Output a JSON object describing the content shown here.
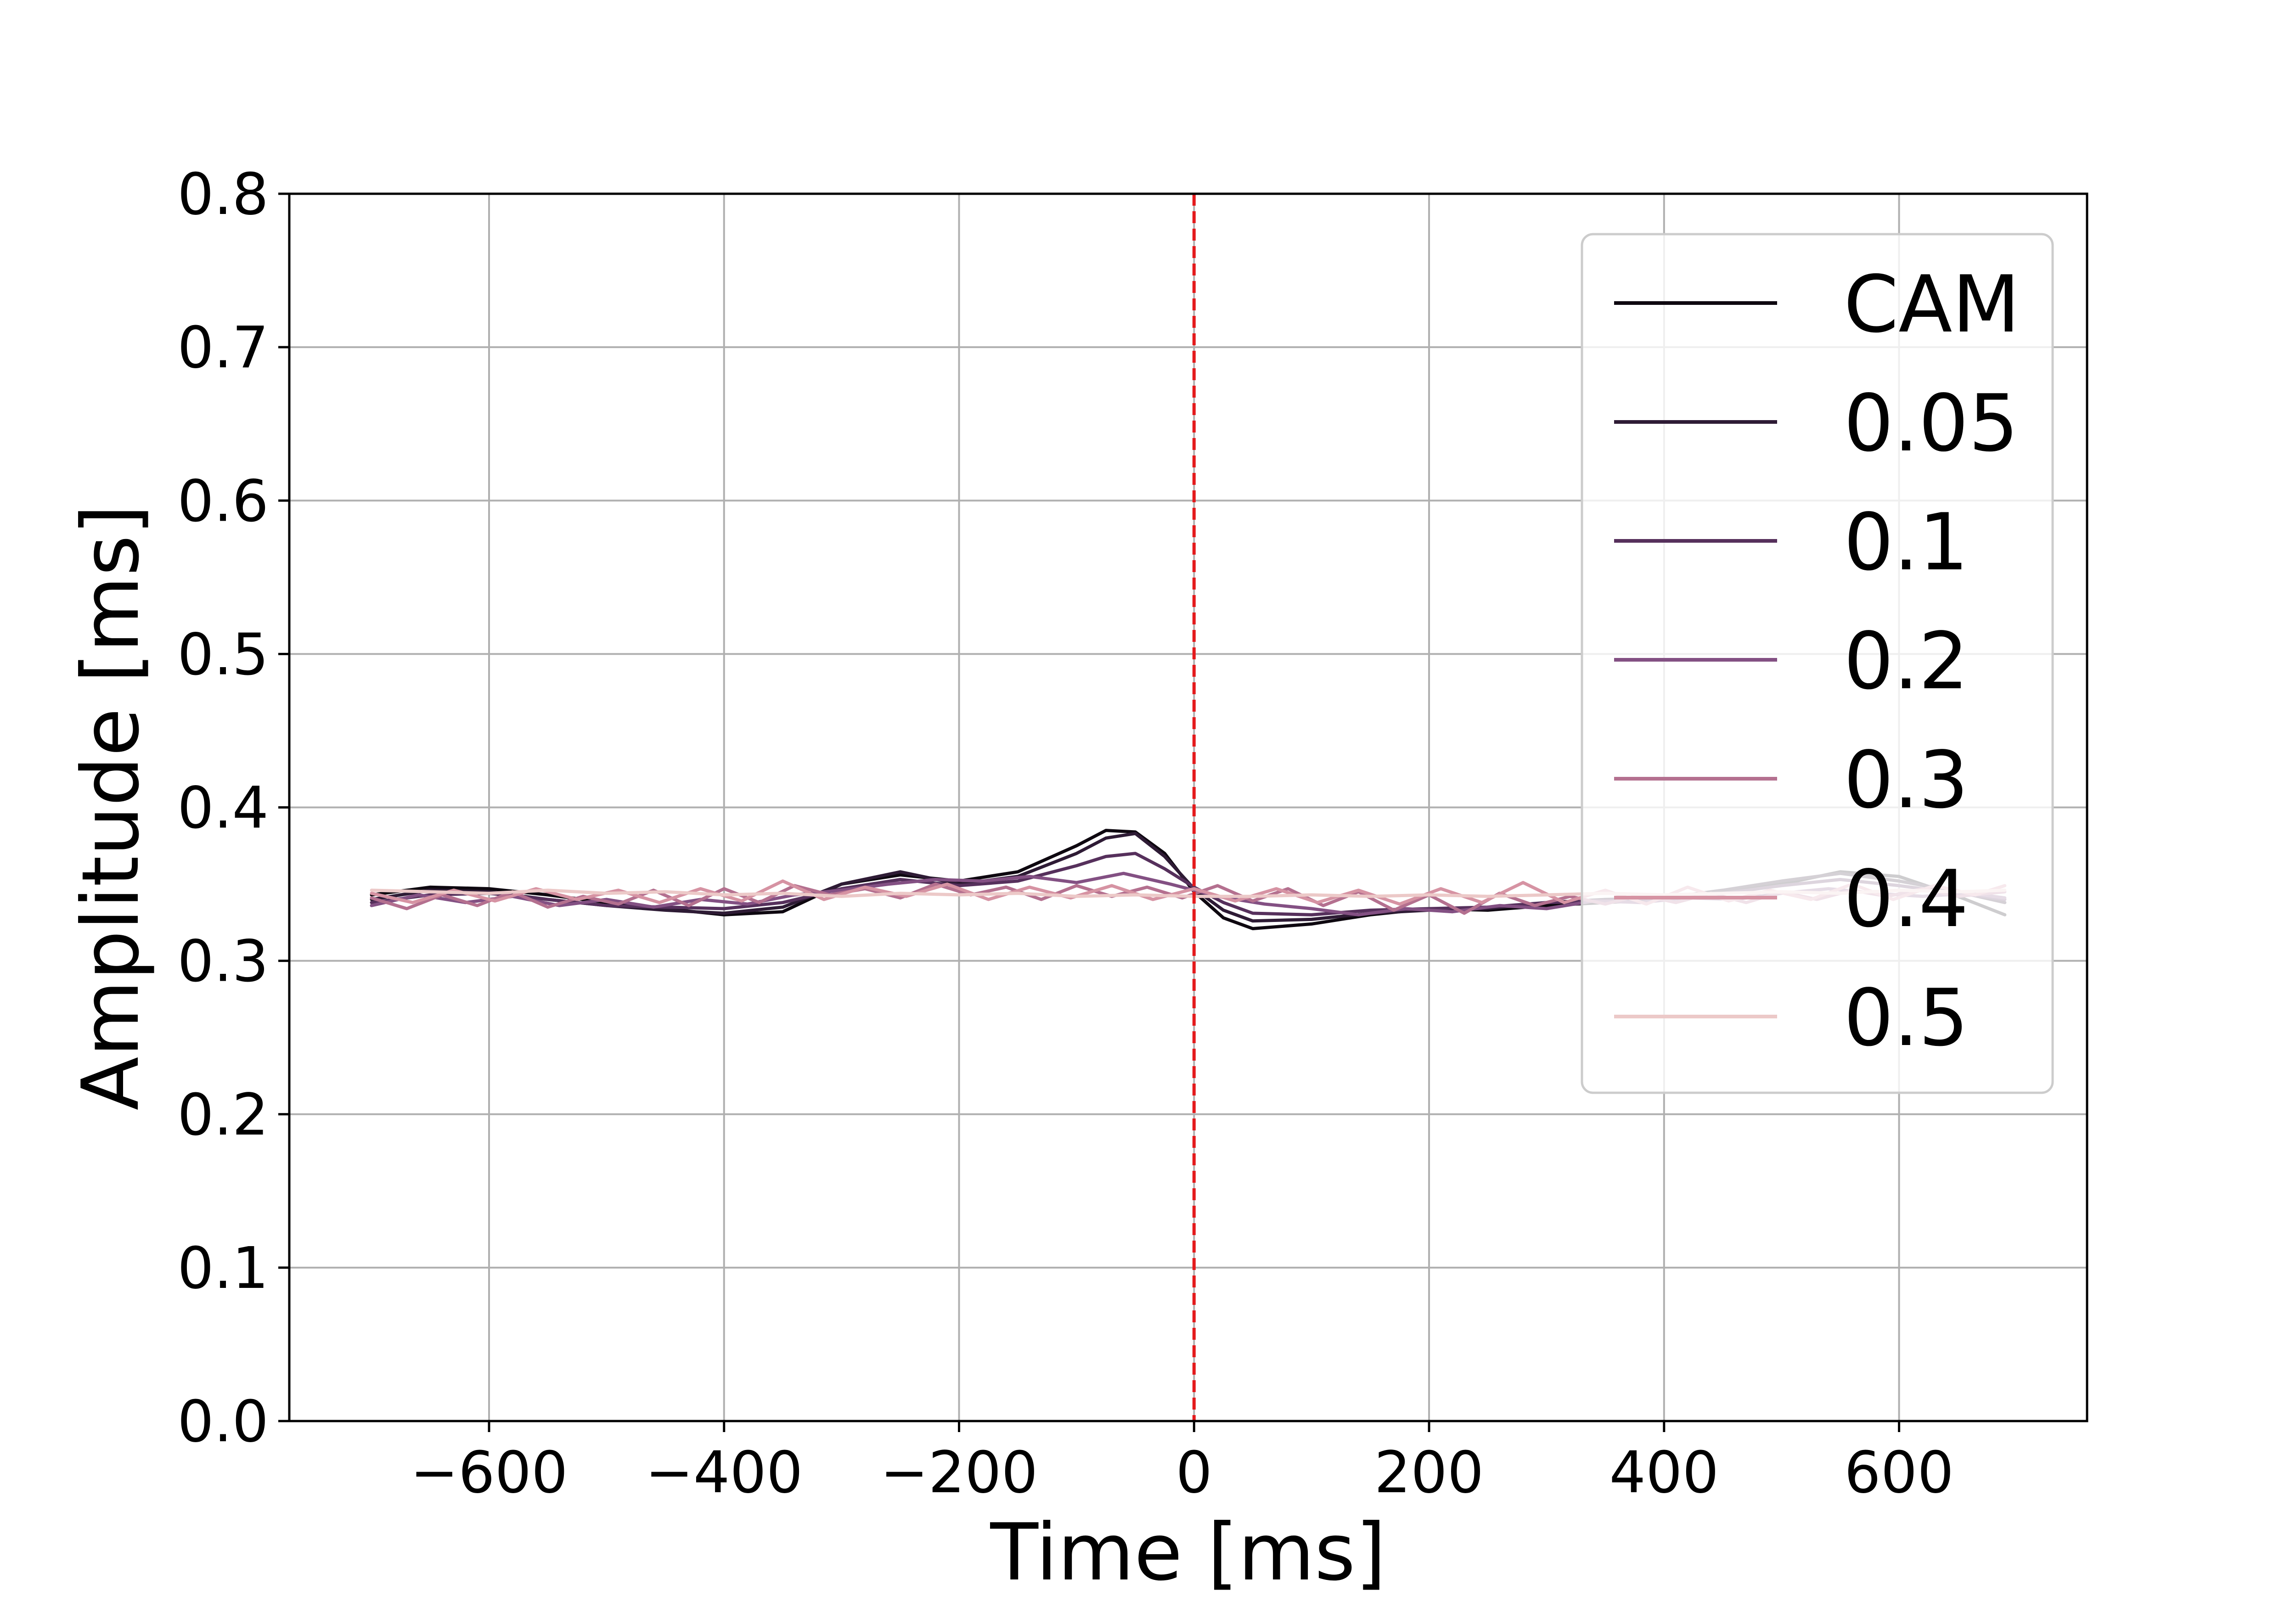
{
  "chart_data": {
    "type": "line",
    "xlabel": "Time [ms]",
    "ylabel": "Amplitude [ms]",
    "xlim": [
      -770,
      760
    ],
    "ylim": [
      0.0,
      0.8
    ],
    "xticks": [
      -600,
      -400,
      -200,
      0,
      200,
      400,
      600
    ],
    "xtick_labels": [
      "−600",
      "−400",
      "−200",
      "0",
      "200",
      "400",
      "600"
    ],
    "yticks": [
      0.0,
      0.1,
      0.2,
      0.3,
      0.4,
      0.5,
      0.6,
      0.7,
      0.8
    ],
    "ytick_labels": [
      "0.0",
      "0.1",
      "0.2",
      "0.3",
      "0.4",
      "0.5",
      "0.6",
      "0.7",
      "0.8"
    ],
    "grid": true,
    "legend_position": "top-right",
    "vline": {
      "x": 0,
      "color": "#e41a1c",
      "style": "dashed"
    },
    "series": [
      {
        "name": "CAM",
        "color": "#0e0810",
        "points": [
          [
            -700,
            0.343
          ],
          [
            -650,
            0.348
          ],
          [
            -600,
            0.347
          ],
          [
            -550,
            0.343
          ],
          [
            -500,
            0.338
          ],
          [
            -450,
            0.334
          ],
          [
            -400,
            0.33
          ],
          [
            -350,
            0.332
          ],
          [
            -300,
            0.35
          ],
          [
            -250,
            0.356
          ],
          [
            -200,
            0.352
          ],
          [
            -150,
            0.358
          ],
          [
            -100,
            0.375
          ],
          [
            -75,
            0.385
          ],
          [
            -50,
            0.384
          ],
          [
            -25,
            0.37
          ],
          [
            0,
            0.345
          ],
          [
            25,
            0.328
          ],
          [
            50,
            0.321
          ],
          [
            100,
            0.324
          ],
          [
            150,
            0.33
          ],
          [
            200,
            0.334
          ],
          [
            250,
            0.333
          ],
          [
            300,
            0.336
          ],
          [
            350,
            0.338
          ],
          [
            400,
            0.34
          ],
          [
            450,
            0.344
          ],
          [
            500,
            0.35
          ],
          [
            550,
            0.358
          ],
          [
            600,
            0.355
          ],
          [
            650,
            0.342
          ],
          [
            690,
            0.33
          ]
        ]
      },
      {
        "name": "0.05",
        "color": "#2e1b35",
        "points": [
          [
            -700,
            0.34
          ],
          [
            -650,
            0.346
          ],
          [
            -600,
            0.345
          ],
          [
            -550,
            0.34
          ],
          [
            -500,
            0.336
          ],
          [
            -450,
            0.333
          ],
          [
            -400,
            0.331
          ],
          [
            -350,
            0.335
          ],
          [
            -300,
            0.35
          ],
          [
            -250,
            0.358
          ],
          [
            -200,
            0.35
          ],
          [
            -150,
            0.355
          ],
          [
            -100,
            0.37
          ],
          [
            -75,
            0.38
          ],
          [
            -50,
            0.383
          ],
          [
            -25,
            0.368
          ],
          [
            0,
            0.347
          ],
          [
            25,
            0.333
          ],
          [
            50,
            0.326
          ],
          [
            100,
            0.327
          ],
          [
            150,
            0.331
          ],
          [
            200,
            0.333
          ],
          [
            250,
            0.334
          ],
          [
            300,
            0.338
          ],
          [
            350,
            0.34
          ],
          [
            400,
            0.341
          ],
          [
            450,
            0.346
          ],
          [
            500,
            0.352
          ],
          [
            550,
            0.357
          ],
          [
            600,
            0.352
          ],
          [
            650,
            0.345
          ],
          [
            690,
            0.338
          ]
        ]
      },
      {
        "name": "0.1",
        "color": "#56305c",
        "points": [
          [
            -700,
            0.338
          ],
          [
            -650,
            0.343
          ],
          [
            -600,
            0.344
          ],
          [
            -550,
            0.34
          ],
          [
            -500,
            0.336
          ],
          [
            -450,
            0.335
          ],
          [
            -400,
            0.334
          ],
          [
            -350,
            0.338
          ],
          [
            -300,
            0.347
          ],
          [
            -250,
            0.353
          ],
          [
            -200,
            0.349
          ],
          [
            -150,
            0.352
          ],
          [
            -100,
            0.362
          ],
          [
            -75,
            0.368
          ],
          [
            -50,
            0.37
          ],
          [
            -25,
            0.36
          ],
          [
            0,
            0.348
          ],
          [
            25,
            0.338
          ],
          [
            50,
            0.331
          ],
          [
            100,
            0.33
          ],
          [
            150,
            0.333
          ],
          [
            200,
            0.334
          ],
          [
            250,
            0.335
          ],
          [
            300,
            0.338
          ],
          [
            350,
            0.339
          ],
          [
            400,
            0.341
          ],
          [
            450,
            0.344
          ],
          [
            500,
            0.349
          ],
          [
            550,
            0.353
          ],
          [
            600,
            0.349
          ],
          [
            650,
            0.344
          ],
          [
            690,
            0.34
          ]
        ]
      },
      {
        "name": "0.2",
        "color": "#835083",
        "points": [
          [
            -700,
            0.336
          ],
          [
            -660,
            0.343
          ],
          [
            -620,
            0.338
          ],
          [
            -580,
            0.342
          ],
          [
            -540,
            0.336
          ],
          [
            -500,
            0.34
          ],
          [
            -460,
            0.335
          ],
          [
            -420,
            0.34
          ],
          [
            -380,
            0.337
          ],
          [
            -340,
            0.343
          ],
          [
            -300,
            0.346
          ],
          [
            -260,
            0.35
          ],
          [
            -220,
            0.353
          ],
          [
            -180,
            0.352
          ],
          [
            -140,
            0.355
          ],
          [
            -100,
            0.351
          ],
          [
            -60,
            0.357
          ],
          [
            -20,
            0.35
          ],
          [
            0,
            0.346
          ],
          [
            20,
            0.342
          ],
          [
            60,
            0.337
          ],
          [
            100,
            0.334
          ],
          [
            140,
            0.33
          ],
          [
            180,
            0.334
          ],
          [
            220,
            0.332
          ],
          [
            260,
            0.336
          ],
          [
            300,
            0.334
          ],
          [
            340,
            0.339
          ],
          [
            380,
            0.338
          ],
          [
            420,
            0.341
          ],
          [
            460,
            0.34
          ],
          [
            500,
            0.344
          ],
          [
            540,
            0.347
          ],
          [
            580,
            0.344
          ],
          [
            620,
            0.342
          ],
          [
            660,
            0.344
          ],
          [
            690,
            0.341
          ]
        ]
      },
      {
        "name": "0.3",
        "color": "#b4708f",
        "points": [
          [
            -700,
            0.341
          ],
          [
            -670,
            0.334
          ],
          [
            -640,
            0.343
          ],
          [
            -610,
            0.336
          ],
          [
            -580,
            0.345
          ],
          [
            -550,
            0.335
          ],
          [
            -520,
            0.342
          ],
          [
            -490,
            0.337
          ],
          [
            -460,
            0.346
          ],
          [
            -430,
            0.336
          ],
          [
            -400,
            0.347
          ],
          [
            -370,
            0.338
          ],
          [
            -340,
            0.349
          ],
          [
            -310,
            0.343
          ],
          [
            -280,
            0.347
          ],
          [
            -250,
            0.341
          ],
          [
            -220,
            0.35
          ],
          [
            -190,
            0.343
          ],
          [
            -160,
            0.348
          ],
          [
            -130,
            0.34
          ],
          [
            -100,
            0.349
          ],
          [
            -70,
            0.342
          ],
          [
            -40,
            0.348
          ],
          [
            -10,
            0.341
          ],
          [
            20,
            0.349
          ],
          [
            50,
            0.339
          ],
          [
            80,
            0.347
          ],
          [
            110,
            0.336
          ],
          [
            140,
            0.345
          ],
          [
            170,
            0.333
          ],
          [
            200,
            0.343
          ],
          [
            230,
            0.331
          ],
          [
            260,
            0.344
          ],
          [
            290,
            0.336
          ],
          [
            320,
            0.342
          ],
          [
            350,
            0.337
          ],
          [
            380,
            0.343
          ],
          [
            410,
            0.338
          ],
          [
            440,
            0.344
          ],
          [
            470,
            0.338
          ],
          [
            500,
            0.345
          ],
          [
            530,
            0.34
          ],
          [
            560,
            0.346
          ],
          [
            590,
            0.342
          ],
          [
            620,
            0.347
          ],
          [
            650,
            0.342
          ],
          [
            690,
            0.345
          ]
        ]
      },
      {
        "name": "0.4",
        "color": "#d693a3",
        "points": [
          [
            -700,
            0.344
          ],
          [
            -665,
            0.338
          ],
          [
            -630,
            0.346
          ],
          [
            -595,
            0.339
          ],
          [
            -560,
            0.347
          ],
          [
            -525,
            0.34
          ],
          [
            -490,
            0.346
          ],
          [
            -455,
            0.338
          ],
          [
            -420,
            0.347
          ],
          [
            -385,
            0.339
          ],
          [
            -350,
            0.352
          ],
          [
            -315,
            0.34
          ],
          [
            -280,
            0.348
          ],
          [
            -245,
            0.342
          ],
          [
            -210,
            0.35
          ],
          [
            -175,
            0.34
          ],
          [
            -140,
            0.348
          ],
          [
            -105,
            0.341
          ],
          [
            -70,
            0.349
          ],
          [
            -35,
            0.34
          ],
          [
            0,
            0.347
          ],
          [
            35,
            0.339
          ],
          [
            70,
            0.347
          ],
          [
            105,
            0.338
          ],
          [
            140,
            0.346
          ],
          [
            175,
            0.337
          ],
          [
            210,
            0.347
          ],
          [
            245,
            0.338
          ],
          [
            280,
            0.351
          ],
          [
            315,
            0.338
          ],
          [
            350,
            0.346
          ],
          [
            385,
            0.337
          ],
          [
            420,
            0.348
          ],
          [
            455,
            0.339
          ],
          [
            490,
            0.346
          ],
          [
            525,
            0.34
          ],
          [
            560,
            0.35
          ],
          [
            595,
            0.34
          ],
          [
            630,
            0.349
          ],
          [
            665,
            0.343
          ],
          [
            690,
            0.349
          ]
        ]
      },
      {
        "name": "0.5",
        "color": "#ecc9c8",
        "points": [
          [
            -700,
            0.346
          ],
          [
            -650,
            0.345
          ],
          [
            -600,
            0.344
          ],
          [
            -550,
            0.346
          ],
          [
            -500,
            0.344
          ],
          [
            -450,
            0.345
          ],
          [
            -400,
            0.343
          ],
          [
            -350,
            0.344
          ],
          [
            -300,
            0.342
          ],
          [
            -250,
            0.344
          ],
          [
            -200,
            0.343
          ],
          [
            -150,
            0.344
          ],
          [
            -100,
            0.342
          ],
          [
            -50,
            0.343
          ],
          [
            0,
            0.342
          ],
          [
            50,
            0.342
          ],
          [
            100,
            0.343
          ],
          [
            150,
            0.342
          ],
          [
            200,
            0.343
          ],
          [
            250,
            0.342
          ],
          [
            300,
            0.343
          ],
          [
            350,
            0.344
          ],
          [
            400,
            0.343
          ],
          [
            450,
            0.344
          ],
          [
            500,
            0.345
          ],
          [
            550,
            0.344
          ],
          [
            600,
            0.346
          ],
          [
            650,
            0.345
          ],
          [
            690,
            0.346
          ]
        ]
      }
    ]
  }
}
